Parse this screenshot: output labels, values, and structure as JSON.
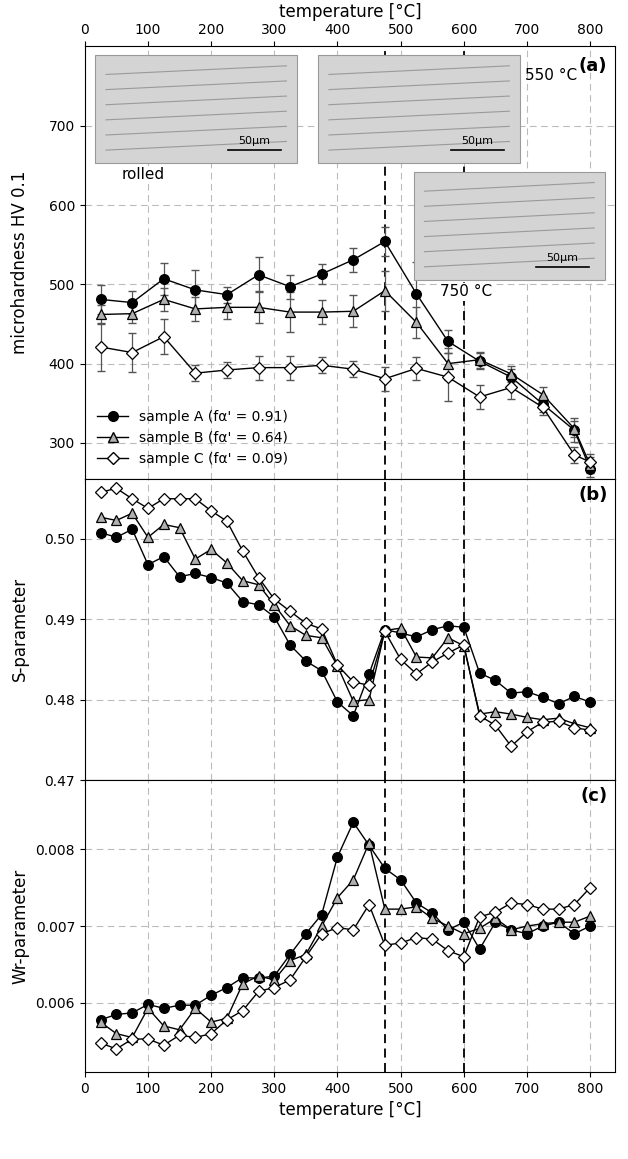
{
  "chart_data": [
    {
      "type": "line",
      "y_label": "microhardness HV 0.1",
      "x_label": "temperature [°C]",
      "annotations": [
        "(a)"
      ],
      "insets": [
        {
          "caption": "rolled",
          "scale_bar": "50µm"
        },
        {
          "caption": "550 °C",
          "scale_bar": "50µm"
        },
        {
          "caption": "750 °C",
          "scale_bar": "50µm"
        }
      ],
      "vlines": [
        475,
        600
      ],
      "x": [
        25,
        75,
        125,
        175,
        225,
        275,
        325,
        375,
        425,
        475,
        525,
        575,
        625,
        675,
        725,
        775,
        800
      ],
      "series": [
        {
          "name": "sample A (fα' = 0.91)",
          "color": "#000000",
          "marker": "o",
          "values": [
            481,
            477,
            507,
            493,
            487,
            512,
            497,
            513,
            531,
            554,
            488,
            428,
            403,
            383,
            349,
            316,
            267
          ],
          "errors": [
            18,
            15,
            20,
            25,
            10,
            22,
            15,
            12,
            15,
            18,
            40,
            15,
            10,
            10,
            10,
            15,
            10
          ]
        },
        {
          "name": "sample B (fα' = 0.64)",
          "color": "#b0b0b0",
          "marker": "^",
          "values": [
            462,
            463,
            481,
            469,
            471,
            471,
            465,
            465,
            466,
            492,
            452,
            400,
            405,
            387,
            361,
            318,
            272
          ],
          "errors": [
            12,
            12,
            15,
            15,
            15,
            20,
            25,
            15,
            20,
            25,
            20,
            20,
            10,
            10,
            10,
            10,
            10
          ]
        },
        {
          "name": "sample C (fα' = 0.09)",
          "color": "#ffffff",
          "marker": "D",
          "values": [
            421,
            414,
            434,
            388,
            392,
            395,
            395,
            398,
            393,
            381,
            394,
            383,
            358,
            370,
            345,
            285,
            276
          ],
          "errors": [
            30,
            25,
            22,
            10,
            10,
            15,
            15,
            10,
            10,
            15,
            15,
            30,
            15,
            15,
            10,
            10,
            10
          ]
        }
      ],
      "xlim": [
        0,
        840
      ],
      "xticks": [
        0,
        100,
        200,
        300,
        400,
        500,
        600,
        700,
        800
      ],
      "ylim": [
        255,
        800
      ],
      "yticks": [
        300,
        400,
        500,
        600,
        700
      ],
      "legend": "lower left",
      "grid": true
    },
    {
      "type": "line",
      "y_label": "S-parameter",
      "annotations": [
        "(b)"
      ],
      "vlines": [
        475,
        600
      ],
      "tick_labels": "y",
      "x": [
        25,
        50,
        75,
        100,
        125,
        150,
        175,
        200,
        225,
        250,
        275,
        300,
        325,
        350,
        375,
        400,
        425,
        450,
        475,
        500,
        525,
        550,
        575,
        600,
        625,
        650,
        675,
        700,
        725,
        750,
        775,
        800
      ],
      "series": [
        {
          "color": "#000000",
          "marker": "o",
          "values": [
            0.5008,
            0.5002,
            0.5012,
            0.4968,
            0.4978,
            0.4953,
            0.4957,
            0.4952,
            0.4945,
            0.4922,
            0.4918,
            0.4903,
            0.4868,
            0.4848,
            0.4836,
            0.4797,
            0.478,
            0.4832,
            0.4887,
            0.4883,
            0.4878,
            0.4887,
            0.4892,
            0.489,
            0.4833,
            0.4824,
            0.4808,
            0.481,
            0.4803,
            0.4795,
            0.4804,
            0.4797
          ]
        },
        {
          "color": "#b0b0b0",
          "marker": "^",
          "values": [
            0.5027,
            0.5023,
            0.5032,
            0.5002,
            0.5018,
            0.5014,
            0.4975,
            0.4987,
            0.497,
            0.4948,
            0.4943,
            0.4918,
            0.4892,
            0.488,
            0.4877,
            0.4842,
            0.4798,
            0.48,
            0.4886,
            0.4889,
            0.4853,
            0.4852,
            0.4877,
            0.4867,
            0.4782,
            0.4785,
            0.4782,
            0.4778,
            0.4775,
            0.4777,
            0.477,
            0.4765
          ]
        },
        {
          "color": "#ffffff",
          "marker": "D",
          "values": [
            0.5058,
            0.5063,
            0.505,
            0.5038,
            0.505,
            0.505,
            0.505,
            0.5035,
            0.5022,
            0.4985,
            0.4952,
            0.4925,
            0.491,
            0.4895,
            0.4888,
            0.4843,
            0.4822,
            0.4818,
            0.4885,
            0.485,
            0.4832,
            0.4847,
            0.4858,
            0.4868,
            0.478,
            0.4768,
            0.4742,
            0.476,
            0.4772,
            0.4773,
            0.4765,
            0.4762
          ]
        }
      ],
      "xlim": [
        0,
        840
      ],
      "xticks": [
        0,
        100,
        200,
        300,
        400,
        500,
        600,
        700,
        800
      ],
      "ylim": [
        0.47,
        0.5075
      ],
      "yticks": [
        0.47,
        0.48,
        0.49,
        {
          "value": 0.5,
          "label": "0.50"
        }
      ],
      "grid": true
    },
    {
      "type": "line",
      "y_label": "Wr-parameter",
      "x_label": "temperature [°C]",
      "annotations": [
        "(c)"
      ],
      "vlines": [
        475,
        600
      ],
      "x": [
        25,
        50,
        75,
        100,
        125,
        150,
        175,
        200,
        225,
        250,
        275,
        300,
        325,
        350,
        375,
        400,
        425,
        450,
        475,
        500,
        525,
        550,
        575,
        600,
        625,
        650,
        675,
        700,
        725,
        750,
        775,
        800
      ],
      "series": [
        {
          "color": "#000000",
          "marker": "o",
          "values": [
            0.00578,
            0.00585,
            0.00587,
            0.00598,
            0.00593,
            0.00597,
            0.00597,
            0.0061,
            0.0062,
            0.00633,
            0.00632,
            0.00635,
            0.00663,
            0.0069,
            0.00715,
            0.0079,
            0.00835,
            0.00805,
            0.00775,
            0.0076,
            0.0073,
            0.00717,
            0.00695,
            0.00705,
            0.0067,
            0.00705,
            0.00695,
            0.0069,
            0.007,
            0.00705,
            0.0069,
            0.007
          ]
        },
        {
          "color": "#b0b0b0",
          "marker": "^",
          "values": [
            0.00575,
            0.0056,
            0.00555,
            0.00593,
            0.0057,
            0.00565,
            0.00593,
            0.00575,
            0.0058,
            0.00625,
            0.00635,
            0.0063,
            0.00655,
            0.00663,
            0.007,
            0.00737,
            0.0076,
            0.00808,
            0.00722,
            0.00722,
            0.00725,
            0.0071,
            0.007,
            0.0069,
            0.00697,
            0.0071,
            0.00695,
            0.007,
            0.00703,
            0.00705,
            0.00705,
            0.00713
          ]
        },
        {
          "color": "#ffffff",
          "marker": "D",
          "values": [
            0.00548,
            0.0054,
            0.00553,
            0.00553,
            0.00545,
            0.00558,
            0.00555,
            0.0056,
            0.00578,
            0.0059,
            0.00615,
            0.0062,
            0.0063,
            0.0066,
            0.0069,
            0.00698,
            0.00695,
            0.00728,
            0.00675,
            0.00678,
            0.00685,
            0.00683,
            0.00668,
            0.0066,
            0.00712,
            0.00718,
            0.0073,
            0.00728,
            0.00722,
            0.00722,
            0.00728,
            0.0075
          ]
        }
      ],
      "xlim": [
        0,
        840
      ],
      "xticks": [
        0,
        100,
        200,
        300,
        400,
        500,
        600,
        700,
        800
      ],
      "ylim": [
        0.0051,
        0.0089
      ],
      "yticks": [
        0.006,
        0.007,
        0.008
      ],
      "grid": true
    }
  ]
}
